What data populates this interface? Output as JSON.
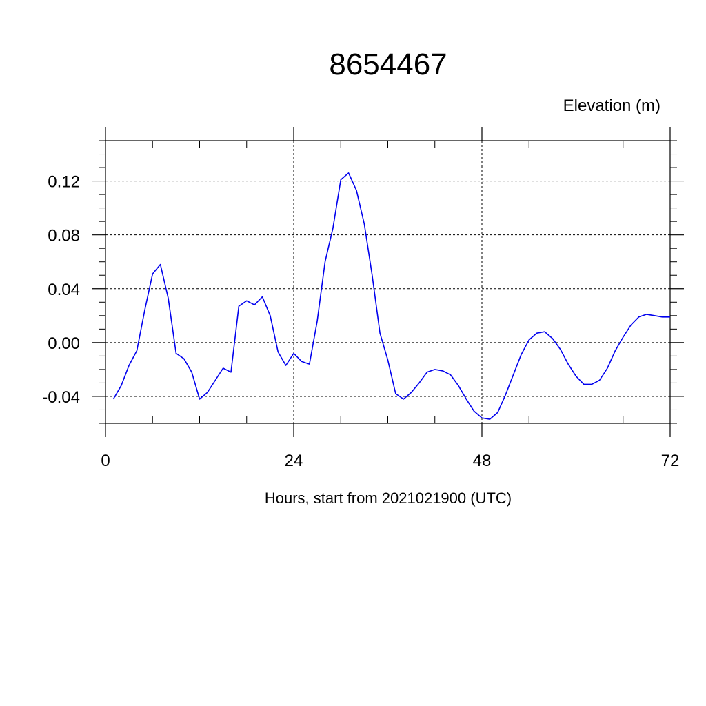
{
  "chart_data": {
    "type": "line",
    "title": "8654467",
    "ylabel": "Elevation (m)",
    "xlabel": "Hours, start from 2021021900 (UTC)",
    "xlim": [
      0,
      72
    ],
    "ylim": [
      -0.06,
      0.15
    ],
    "x_ticks": [
      0,
      24,
      48,
      72
    ],
    "x_tick_labels": [
      "0",
      "24",
      "48",
      "72"
    ],
    "y_ticks": [
      -0.04,
      0.0,
      0.04,
      0.08,
      0.12
    ],
    "y_tick_labels": [
      "-0.04",
      "0.00",
      "0.04",
      "0.08",
      "0.12"
    ],
    "grid": true,
    "line_color": "#0000ee",
    "series": [
      {
        "x": [
          1,
          2,
          3,
          4,
          5,
          6,
          7,
          8,
          9,
          10,
          11,
          12,
          13,
          14,
          15,
          16,
          17,
          18,
          19,
          20,
          21,
          22,
          23,
          24,
          25,
          26,
          27,
          28,
          29,
          30,
          31,
          32,
          33,
          34,
          35,
          36,
          37,
          38,
          39,
          40,
          41,
          42,
          43,
          44,
          45,
          46,
          47,
          48,
          49,
          50,
          51,
          52,
          53,
          54,
          55,
          56,
          57,
          58,
          59,
          60,
          61,
          62,
          63,
          64,
          65,
          66,
          67,
          68,
          69,
          70,
          71,
          72
        ],
        "y": [
          -0.042,
          -0.032,
          -0.017,
          -0.006,
          0.024,
          0.051,
          0.058,
          0.033,
          -0.008,
          -0.012,
          -0.022,
          -0.042,
          -0.037,
          -0.028,
          -0.019,
          -0.022,
          0.027,
          0.031,
          0.028,
          0.034,
          0.02,
          -0.007,
          -0.017,
          -0.008,
          -0.014,
          -0.016,
          0.016,
          0.06,
          0.085,
          0.121,
          0.126,
          0.113,
          0.088,
          0.05,
          0.007,
          -0.013,
          -0.038,
          -0.042,
          -0.037,
          -0.03,
          -0.022,
          -0.02,
          -0.021,
          -0.024,
          -0.032,
          -0.042,
          -0.051,
          -0.056,
          -0.057,
          -0.052,
          -0.039,
          -0.024,
          -0.009,
          0.002,
          0.007,
          0.008,
          0.003,
          -0.005,
          -0.016,
          -0.025,
          -0.031,
          -0.031,
          -0.028,
          -0.019,
          -0.006,
          0.004,
          0.013,
          0.019,
          0.021,
          0.02,
          0.019,
          0.019
        ]
      }
    ]
  }
}
